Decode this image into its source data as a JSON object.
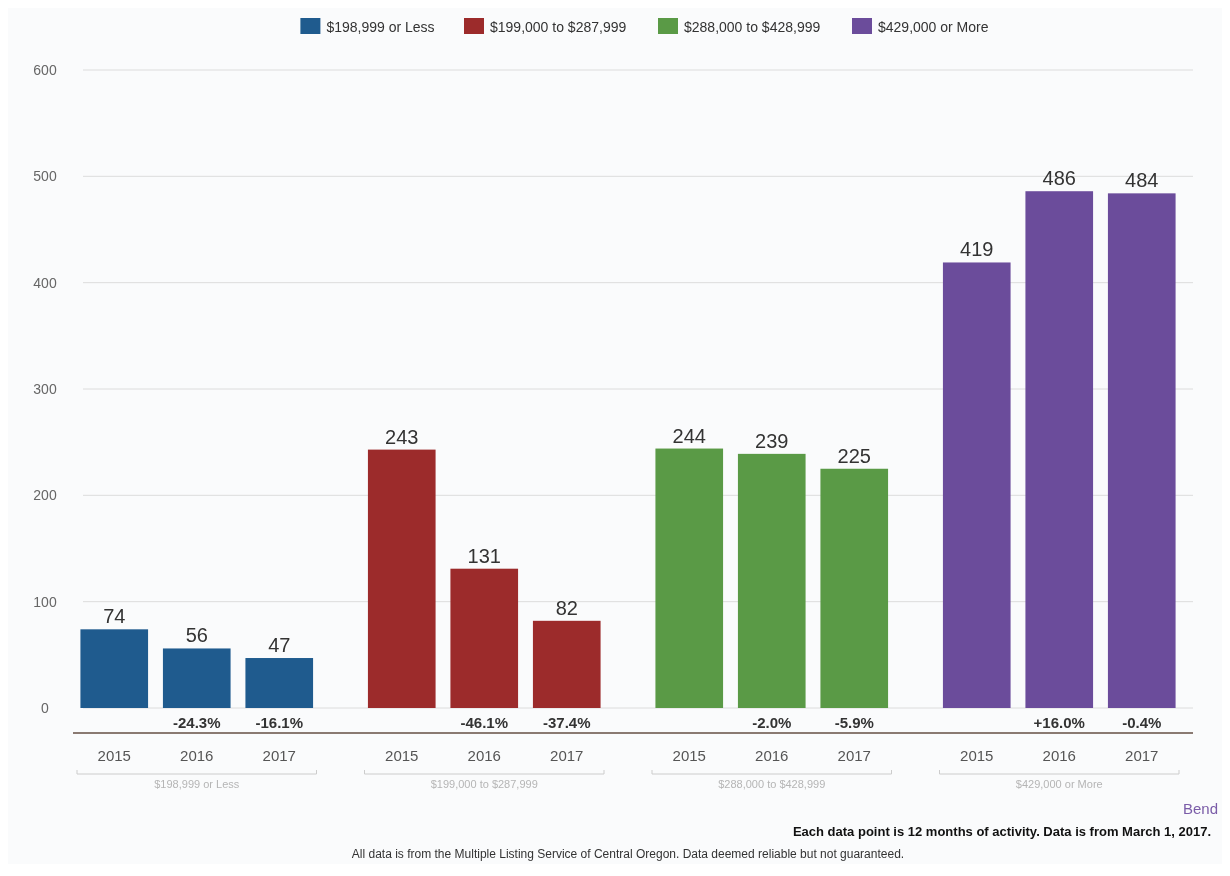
{
  "chart_data": {
    "type": "bar",
    "categories": [
      "2015",
      "2016",
      "2017",
      "2015",
      "2016",
      "2017",
      "2015",
      "2016",
      "2017",
      "2015",
      "2016",
      "2017"
    ],
    "series": [
      {
        "name": "$198,999 or Less",
        "color": "#1f5b8e",
        "values": [
          74,
          56,
          47,
          null,
          null,
          null,
          null,
          null,
          null,
          null,
          null,
          null
        ]
      },
      {
        "name": "$199,000 to $287,999",
        "color": "#9c2b2b",
        "values": [
          null,
          null,
          null,
          243,
          131,
          82,
          null,
          null,
          null,
          null,
          null,
          null
        ]
      },
      {
        "name": "$288,000 to $428,999",
        "color": "#5a9a46",
        "values": [
          null,
          null,
          null,
          null,
          null,
          null,
          244,
          239,
          225,
          null,
          null,
          null
        ]
      },
      {
        "name": "$429,000 or More",
        "color": "#6b4c9b",
        "values": [
          null,
          null,
          null,
          null,
          null,
          null,
          null,
          null,
          null,
          419,
          486,
          484
        ]
      }
    ],
    "ylim": [
      0,
      600
    ],
    "yticks": [
      0,
      100,
      200,
      300,
      400,
      500,
      600
    ],
    "grid": "y",
    "legend": "top",
    "data_labels": true,
    "annotations": [
      "-24.3%",
      "-16.1%",
      "-46.1%",
      "-37.4%",
      "-2.0%",
      "-5.9%",
      "+16.0%",
      "-0.4%",
      "Bend",
      "Each data point is 12 months of activity. Data is from March 1, 2017.",
      "All data is from the Multiple Listing Service of Central Oregon. Data deemed reliable but not guaranteed."
    ]
  }
}
